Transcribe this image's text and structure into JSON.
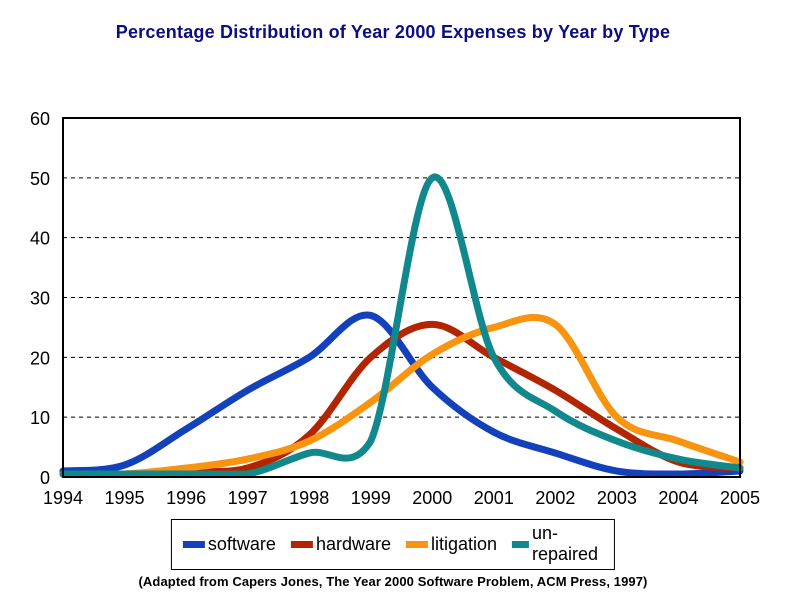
{
  "title": "Percentage Distribution of Year 2000 Expenses by Year by Type",
  "footer": "(Adapted from Capers Jones, The Year 2000 Software Problem, ACM Press, 1997)",
  "colors": {
    "title_text": "#0d0d82",
    "axis": "#000000",
    "background": "#ffffff"
  },
  "chart_data": {
    "type": "line",
    "title": "Percentage Distribution of Year 2000 Expenses by Year by Type",
    "xlabel": "",
    "ylabel": "",
    "categories": [
      "1994",
      "1995",
      "1996",
      "1997",
      "1998",
      "1999",
      "2000",
      "2001",
      "2002",
      "2003",
      "2004",
      "2005"
    ],
    "series": [
      {
        "name": "software",
        "color": "#1341bb",
        "values": [
          1,
          2,
          8,
          14.5,
          20,
          27,
          15,
          7.5,
          4,
          1,
          0.5,
          1
        ]
      },
      {
        "name": "hardware",
        "color": "#b32400",
        "values": [
          0,
          0.5,
          1,
          1.5,
          7,
          20,
          25.5,
          20,
          14.5,
          8,
          2.5,
          1.5
        ]
      },
      {
        "name": "litigation",
        "color": "#f8940f",
        "values": [
          0,
          0.5,
          1.5,
          3,
          6,
          12.5,
          20.5,
          25,
          25.5,
          10,
          6,
          2.5
        ]
      },
      {
        "name": "un-repaired",
        "color": "#11898c",
        "values": [
          0,
          0,
          0.3,
          0.5,
          4,
          6,
          50,
          20,
          11,
          6,
          3,
          1.5
        ]
      }
    ],
    "ylim": [
      0,
      60
    ],
    "y_ticks": [
      0,
      10,
      20,
      30,
      40,
      50,
      60
    ],
    "grid": "horizontal-dashed",
    "legend_position": "bottom",
    "smooth_lines": true
  }
}
